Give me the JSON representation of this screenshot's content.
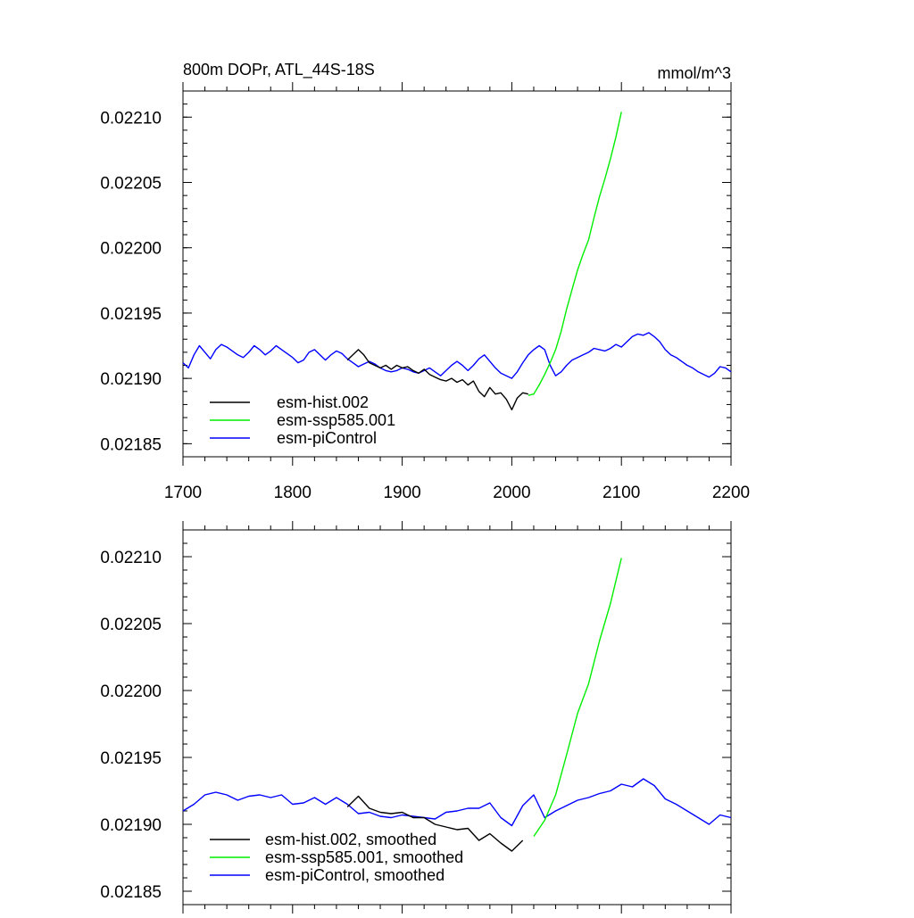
{
  "chart_data": [
    {
      "type": "line",
      "title_left": "800m DOPr, ATL_44S-18S",
      "title_right": "mmol/m^3",
      "xlim": [
        1700,
        2200
      ],
      "ylim": [
        0.02184,
        0.02212
      ],
      "x_ticks": [
        1700,
        1800,
        1900,
        2000,
        2100,
        2200
      ],
      "x_tick_labels": [
        "1700",
        "1800",
        "1900",
        "2000",
        "2100",
        "2200"
      ],
      "y_ticks": [
        0.02185,
        0.0219,
        0.02195,
        0.022,
        0.02205,
        0.0221
      ],
      "y_tick_labels": [
        "0.02185",
        "0.02190",
        "0.02195",
        "0.02200",
        "0.02205",
        "0.02210"
      ],
      "legend": [
        "esm-hist.002",
        "esm-ssp585.001",
        "esm-piControl"
      ],
      "series": [
        {
          "name": "esm-piControl",
          "color": "#0000ff",
          "x": [
            1700,
            1705,
            1710,
            1715,
            1720,
            1725,
            1730,
            1735,
            1740,
            1745,
            1750,
            1755,
            1760,
            1765,
            1770,
            1775,
            1780,
            1785,
            1790,
            1795,
            1800,
            1805,
            1810,
            1815,
            1820,
            1825,
            1830,
            1835,
            1840,
            1845,
            1850,
            1855,
            1860,
            1865,
            1870,
            1875,
            1880,
            1885,
            1890,
            1895,
            1900,
            1905,
            1910,
            1915,
            1920,
            1925,
            1930,
            1935,
            1940,
            1945,
            1950,
            1955,
            1960,
            1965,
            1970,
            1975,
            1980,
            1985,
            1990,
            1995,
            2000,
            2005,
            2010,
            2015,
            2020,
            2025,
            2030,
            2035,
            2040,
            2045,
            2050,
            2055,
            2060,
            2065,
            2070,
            2075,
            2080,
            2085,
            2090,
            2095,
            2100,
            2105,
            2110,
            2115,
            2120,
            2125,
            2130,
            2135,
            2140,
            2145,
            2150,
            2155,
            2160,
            2165,
            2170,
            2175,
            2180,
            2185,
            2190,
            2195,
            2200
          ],
          "values": [
            0.021912,
            0.021908,
            0.021918,
            0.021925,
            0.02192,
            0.021915,
            0.021922,
            0.021926,
            0.021924,
            0.021921,
            0.021918,
            0.021916,
            0.02192,
            0.021925,
            0.021922,
            0.021918,
            0.021921,
            0.021925,
            0.021922,
            0.021919,
            0.021916,
            0.021912,
            0.021914,
            0.02192,
            0.021922,
            0.021918,
            0.021914,
            0.021918,
            0.021921,
            0.021919,
            0.021915,
            0.021912,
            0.021909,
            0.021911,
            0.021913,
            0.021911,
            0.021908,
            0.021906,
            0.021905,
            0.021906,
            0.021908,
            0.021907,
            0.021905,
            0.021904,
            0.021906,
            0.021908,
            0.021905,
            0.021902,
            0.021906,
            0.02191,
            0.021913,
            0.02191,
            0.021906,
            0.02191,
            0.021915,
            0.021918,
            0.021913,
            0.021908,
            0.021904,
            0.021902,
            0.0219,
            0.021905,
            0.021912,
            0.021918,
            0.021922,
            0.021925,
            0.021922,
            0.02191,
            0.021902,
            0.021905,
            0.02191,
            0.021914,
            0.021916,
            0.021918,
            0.02192,
            0.021923,
            0.021922,
            0.021921,
            0.021923,
            0.021926,
            0.021924,
            0.021928,
            0.021932,
            0.021934,
            0.021933,
            0.021935,
            0.021932,
            0.021928,
            0.021922,
            0.021918,
            0.021916,
            0.021913,
            0.02191,
            0.021908,
            0.021905,
            0.021903,
            0.021901,
            0.021904,
            0.021909,
            0.021908,
            0.021905
          ]
        },
        {
          "name": "esm-hist.002",
          "color": "#000000",
          "x": [
            1850,
            1855,
            1860,
            1865,
            1870,
            1875,
            1880,
            1885,
            1890,
            1895,
            1900,
            1905,
            1910,
            1915,
            1920,
            1925,
            1930,
            1935,
            1940,
            1945,
            1950,
            1955,
            1960,
            1965,
            1970,
            1975,
            1980,
            1985,
            1990,
            1995,
            2000,
            2005,
            2010,
            2015
          ],
          "values": [
            0.021914,
            0.021918,
            0.021922,
            0.021918,
            0.021912,
            0.02191,
            0.021908,
            0.02191,
            0.021907,
            0.02191,
            0.021908,
            0.021909,
            0.021906,
            0.021904,
            0.021907,
            0.021903,
            0.021901,
            0.021899,
            0.021898,
            0.0219,
            0.021897,
            0.021899,
            0.021895,
            0.021898,
            0.02189,
            0.021886,
            0.021893,
            0.021888,
            0.021889,
            0.021884,
            0.021876,
            0.021885,
            0.021889,
            0.021888
          ]
        },
        {
          "name": "esm-ssp585.001",
          "color": "#00ee00",
          "x": [
            2015,
            2020,
            2025,
            2030,
            2035,
            2040,
            2045,
            2050,
            2055,
            2060,
            2065,
            2070,
            2075,
            2080,
            2085,
            2090,
            2095,
            2100
          ],
          "values": [
            0.021887,
            0.021888,
            0.021895,
            0.021903,
            0.021912,
            0.021922,
            0.021936,
            0.021953,
            0.021968,
            0.021983,
            0.021995,
            0.022006,
            0.022023,
            0.022039,
            0.022053,
            0.022068,
            0.022085,
            0.022104
          ]
        }
      ]
    },
    {
      "type": "line",
      "xlim": [
        1700,
        2200
      ],
      "ylim": [
        0.02184,
        0.02212
      ],
      "x_ticks": [
        1700,
        1800,
        1900,
        2000,
        2100,
        2200
      ],
      "y_ticks": [
        0.02185,
        0.0219,
        0.02195,
        0.022,
        0.02205,
        0.0221
      ],
      "y_tick_labels": [
        "0.02185",
        "0.02190",
        "0.02195",
        "0.02200",
        "0.02205",
        "0.02210"
      ],
      "legend": [
        "esm-hist.002, smoothed",
        "esm-ssp585.001, smoothed",
        "esm-piControl, smoothed"
      ],
      "series": [
        {
          "name": "esm-piControl, smoothed",
          "color": "#0000ff",
          "x": [
            1700,
            1710,
            1720,
            1730,
            1740,
            1750,
            1760,
            1770,
            1780,
            1790,
            1800,
            1810,
            1820,
            1830,
            1840,
            1850,
            1860,
            1870,
            1880,
            1890,
            1900,
            1910,
            1920,
            1930,
            1940,
            1950,
            1960,
            1970,
            1980,
            1990,
            2000,
            2010,
            2020,
            2030,
            2040,
            2050,
            2060,
            2070,
            2080,
            2090,
            2100,
            2110,
            2120,
            2130,
            2140,
            2150,
            2160,
            2170,
            2180,
            2190,
            2200
          ],
          "values": [
            0.02191,
            0.021915,
            0.021922,
            0.021924,
            0.021922,
            0.021918,
            0.021921,
            0.021922,
            0.02192,
            0.021922,
            0.021915,
            0.021916,
            0.02192,
            0.021915,
            0.02192,
            0.021915,
            0.021908,
            0.021909,
            0.021906,
            0.021905,
            0.021907,
            0.021906,
            0.021905,
            0.021904,
            0.021909,
            0.02191,
            0.021912,
            0.021912,
            0.021916,
            0.021905,
            0.021899,
            0.021914,
            0.021922,
            0.021905,
            0.02191,
            0.021914,
            0.021918,
            0.02192,
            0.021923,
            0.021925,
            0.02193,
            0.021928,
            0.021934,
            0.021929,
            0.021919,
            0.021915,
            0.02191,
            0.021905,
            0.0219,
            0.021907,
            0.021905
          ]
        },
        {
          "name": "esm-hist.002, smoothed",
          "color": "#000000",
          "x": [
            1850,
            1860,
            1870,
            1880,
            1890,
            1900,
            1910,
            1920,
            1930,
            1940,
            1950,
            1960,
            1970,
            1980,
            1990,
            2000,
            2010
          ],
          "values": [
            0.021913,
            0.021921,
            0.021912,
            0.021909,
            0.021908,
            0.021909,
            0.021905,
            0.021905,
            0.0219,
            0.021898,
            0.021896,
            0.021897,
            0.021888,
            0.021893,
            0.021886,
            0.02188,
            0.021888
          ]
        },
        {
          "name": "esm-ssp585.001, smoothed",
          "color": "#00ee00",
          "x": [
            2020,
            2030,
            2040,
            2050,
            2060,
            2070,
            2080,
            2090,
            2100
          ],
          "values": [
            0.021891,
            0.021903,
            0.021922,
            0.021952,
            0.021983,
            0.022005,
            0.022037,
            0.022065,
            0.022099
          ]
        }
      ]
    }
  ]
}
